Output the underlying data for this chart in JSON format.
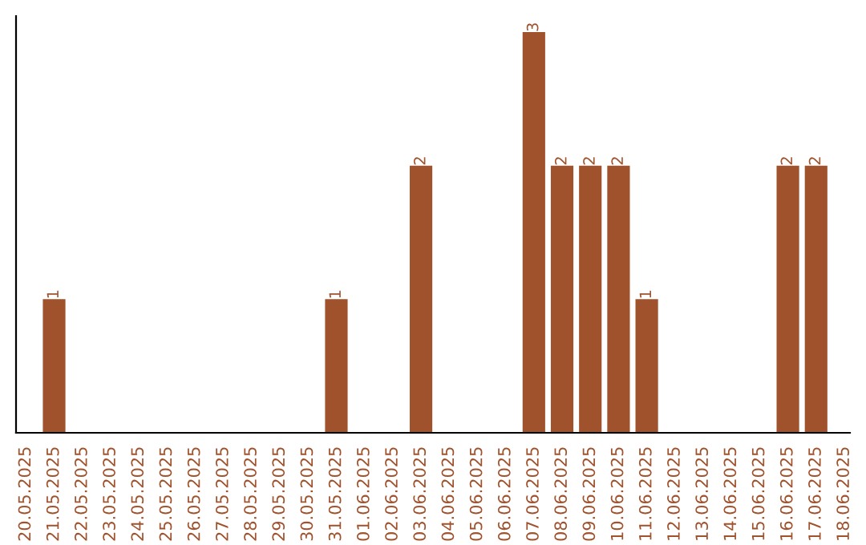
{
  "chart_data": {
    "type": "bar",
    "categories": [
      "20.05.2025",
      "21.05.2025",
      "22.05.2025",
      "23.05.2025",
      "24.05.2025",
      "25.05.2025",
      "26.05.2025",
      "27.05.2025",
      "28.05.2025",
      "29.05.2025",
      "30.05.2025",
      "31.05.2025",
      "01.06.2025",
      "02.06.2025",
      "03.06.2025",
      "04.06.2025",
      "05.06.2025",
      "06.06.2025",
      "07.06.2025",
      "08.06.2025",
      "09.06.2025",
      "10.06.2025",
      "11.06.2025",
      "12.06.2025",
      "13.06.2025",
      "14.06.2025",
      "15.06.2025",
      "16.06.2025",
      "17.06.2025",
      "18.06.2025"
    ],
    "values": [
      0,
      1,
      0,
      0,
      0,
      0,
      0,
      0,
      0,
      0,
      0,
      1,
      0,
      0,
      2,
      0,
      0,
      0,
      3,
      2,
      2,
      2,
      1,
      0,
      0,
      0,
      0,
      2,
      2,
      0
    ],
    "value_labels": [
      null,
      "1",
      null,
      null,
      null,
      null,
      null,
      null,
      null,
      null,
      null,
      "1",
      null,
      null,
      "2",
      null,
      null,
      null,
      "3",
      "2",
      "2",
      "2",
      "1",
      null,
      null,
      null,
      null,
      "2",
      "2",
      null
    ],
    "color": "#a0522d",
    "grid": false,
    "legend": false,
    "tick_labels": "x"
  }
}
